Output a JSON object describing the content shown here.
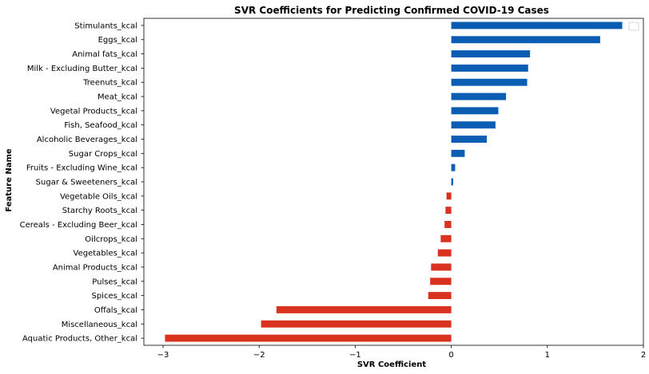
{
  "chart_data": {
    "type": "bar",
    "orientation": "horizontal",
    "title": "SVR Coefficients for Predicting Confirmed COVID-19 Cases",
    "xlabel": "SVR Coefficient",
    "ylabel": "Feature Name",
    "xlim": [
      -3.2,
      2.0
    ],
    "xticks": [
      -3,
      -2,
      -1,
      0,
      1,
      2
    ],
    "xtick_labels": [
      "−3",
      "−2",
      "−1",
      "0",
      "1",
      "2"
    ],
    "grid": false,
    "legend": "top-right",
    "legend_entries": [],
    "colors": {
      "positive": "#0b5cb3",
      "negative": "#d9321f"
    },
    "categories": [
      "Stimulants_kcal",
      "Eggs_kcal",
      "Animal fats_kcal",
      "Milk - Excluding Butter_kcal",
      "Treenuts_kcal",
      "Meat_kcal",
      "Vegetal Products_kcal",
      "Fish, Seafood_kcal",
      "Alcoholic Beverages_kcal",
      "Sugar Crops_kcal",
      "Fruits - Excluding Wine_kcal",
      "Sugar & Sweeteners_kcal",
      "Vegetable Oils_kcal",
      "Starchy Roots_kcal",
      "Cereals - Excluding Beer_kcal",
      "Oilcrops_kcal",
      "Vegetables_kcal",
      "Animal Products_kcal",
      "Pulses_kcal",
      "Spices_kcal",
      "Offals_kcal",
      "Miscellaneous_kcal",
      "Aquatic Products, Other_kcal"
    ],
    "values": [
      1.78,
      1.55,
      0.82,
      0.8,
      0.79,
      0.57,
      0.49,
      0.46,
      0.37,
      0.14,
      0.04,
      0.02,
      -0.05,
      -0.06,
      -0.07,
      -0.11,
      -0.14,
      -0.21,
      -0.22,
      -0.24,
      -1.82,
      -1.98,
      -2.98
    ]
  }
}
